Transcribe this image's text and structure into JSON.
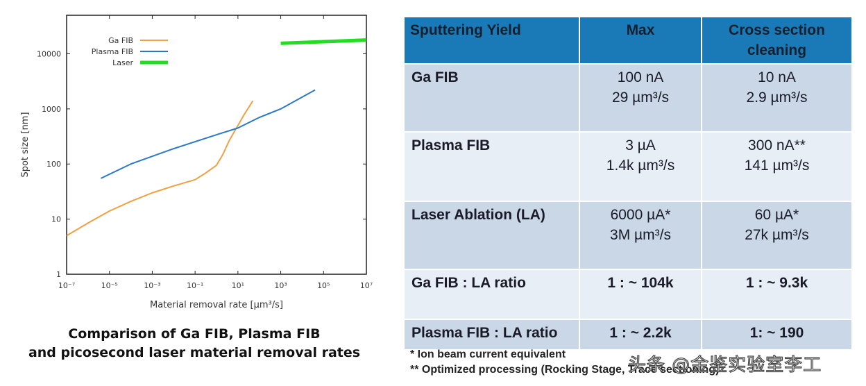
{
  "chart_data": {
    "type": "line",
    "xlabel": "Material removal rate [µm³/s]",
    "ylabel": "Spot size [nm]",
    "xscale": "log",
    "yscale": "log",
    "xlim": [
      1e-07,
      10000000.0
    ],
    "ylim": [
      1,
      50000
    ],
    "xticks": [
      "10⁻⁷",
      "10⁻⁵",
      "10⁻³",
      "10⁻¹",
      "10¹",
      "10³",
      "10⁵",
      "10⁷"
    ],
    "yticks": [
      "1",
      "10",
      "100",
      "1000",
      "10000"
    ],
    "legend_position": "top-left",
    "grid": false,
    "series": [
      {
        "name": "Ga FIB",
        "color": "#f0a040",
        "x": [
          1e-07,
          1e-06,
          1e-05,
          0.0001,
          0.001,
          0.01,
          0.1,
          0.3,
          1,
          2,
          4,
          10,
          20,
          50
        ],
        "y": [
          5,
          8.5,
          14,
          21,
          30,
          40,
          52,
          68,
          95,
          150,
          270,
          500,
          800,
          1400
        ]
      },
      {
        "name": "Plasma FIB",
        "color": "#2a78c8",
        "x": [
          4e-06,
          0.0001,
          0.01,
          1,
          10,
          100,
          1000,
          40000
        ],
        "y": [
          55,
          100,
          190,
          340,
          450,
          700,
          1000,
          2200
        ]
      },
      {
        "name": "Laser",
        "color": "#22dd22",
        "x": [
          1000.0,
          10000000.0
        ],
        "y": [
          15500,
          17800
        ]
      }
    ]
  },
  "caption": [
    "Comparison of Ga FIB, Plasma FIB",
    "and picosecond laser material removal rates"
  ],
  "table": {
    "headers": [
      "Sputtering Yield",
      "Max",
      "Cross section cleaning"
    ],
    "rows": [
      {
        "label": "Ga FIB",
        "max": [
          "100 nA",
          "29 µm³/s"
        ],
        "cross": [
          "10 nA",
          "2.9 µm³/s"
        ]
      },
      {
        "label": "Plasma FIB",
        "max": [
          "3 µA",
          "1.4k µm³/s"
        ],
        "cross": [
          "300 nA**",
          "141 µm³/s"
        ]
      },
      {
        "label": "Laser Ablation (LA)",
        "max": [
          "6000 µA*",
          "3M µm³/s"
        ],
        "cross": [
          "60 µA*",
          "27k µm³/s"
        ]
      },
      {
        "label": "Ga FIB : LA ratio",
        "max": [
          "1 : ~ 104k"
        ],
        "cross": [
          "1 : ~ 9.3k"
        ]
      },
      {
        "label": "Plasma FIB : LA ratio",
        "max": [
          "1 : ~ 2.2k"
        ],
        "cross": [
          "1: ~ 190"
        ]
      }
    ],
    "header_color": "#1a7ab8"
  },
  "footnotes": [
    "* Ion beam current equivalent",
    "** Optimized processing (Rocking Stage, Trace sectioning)"
  ],
  "watermark": "头条 @金鉴实验室李工"
}
